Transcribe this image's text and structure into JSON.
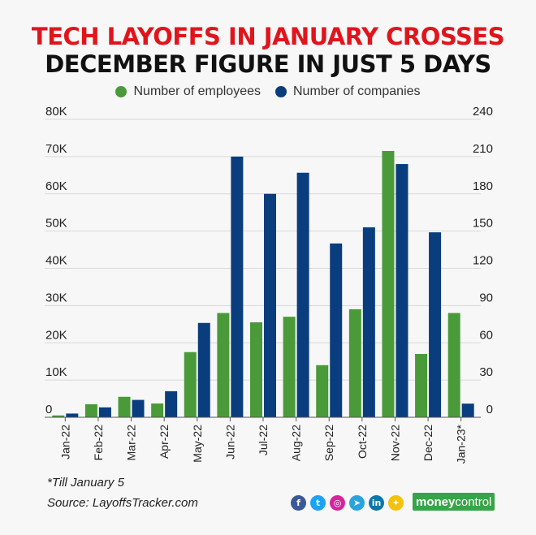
{
  "title_line1": "TECH LAYOFFS IN JANUARY CROSSES",
  "title_line2": "DECEMBER FIGURE IN JUST 5 DAYS",
  "colors": {
    "employees": "#4a9a3a",
    "companies": "#0a3d7e",
    "title_accent": "#e0151c"
  },
  "chart_data": {
    "type": "bar",
    "categories": [
      "Jan-22",
      "Feb-22",
      "Mar-22",
      "Apr-22",
      "May-22",
      "Jun-22",
      "Jul-22",
      "Aug-22",
      "Sep-22",
      "Oct-22",
      "Nov-22",
      "Dec-22",
      "Jan-23*"
    ],
    "series": [
      {
        "name": "Number of employees",
        "axis": "left",
        "values": [
          500,
          3500,
          5500,
          3700,
          17500,
          28000,
          25500,
          27000,
          14000,
          29000,
          71500,
          17000,
          28000
        ]
      },
      {
        "name": "Number of companies",
        "axis": "right",
        "values": [
          3,
          8,
          14,
          21,
          76,
          210,
          180,
          197,
          140,
          153,
          204,
          149,
          11
        ]
      }
    ],
    "y_left": {
      "range": [
        0,
        80000
      ],
      "ticks": [
        0,
        10000,
        20000,
        30000,
        40000,
        50000,
        60000,
        70000,
        80000
      ],
      "tick_labels": [
        "0",
        "10K",
        "20K",
        "30K",
        "40K",
        "50K",
        "60K",
        "70K",
        "80K"
      ]
    },
    "y_right": {
      "range": [
        0,
        240
      ],
      "ticks": [
        0,
        30,
        60,
        90,
        120,
        150,
        180,
        210,
        240
      ],
      "tick_labels": [
        "0",
        "30",
        "60",
        "90",
        "120",
        "150",
        "180",
        "210",
        "240"
      ]
    },
    "grid": true,
    "legend_position": "top-center"
  },
  "footnote": "*Till January 5",
  "source": "Source: LayoffsTracker.com",
  "social_icons": [
    {
      "name": "facebook-icon",
      "glyph": "f",
      "color": "#3b5998"
    },
    {
      "name": "twitter-icon",
      "glyph": "t",
      "color": "#1da1f2"
    },
    {
      "name": "instagram-icon",
      "glyph": "◎",
      "color": "#d6249f"
    },
    {
      "name": "telegram-icon",
      "glyph": "➤",
      "color": "#2aa3dc"
    },
    {
      "name": "linkedin-icon",
      "glyph": "in",
      "color": "#0e76a8"
    },
    {
      "name": "snapchat-icon",
      "glyph": "✦",
      "color": "#f4c20d"
    }
  ],
  "brand": {
    "part1": "money",
    "part2": "control"
  }
}
